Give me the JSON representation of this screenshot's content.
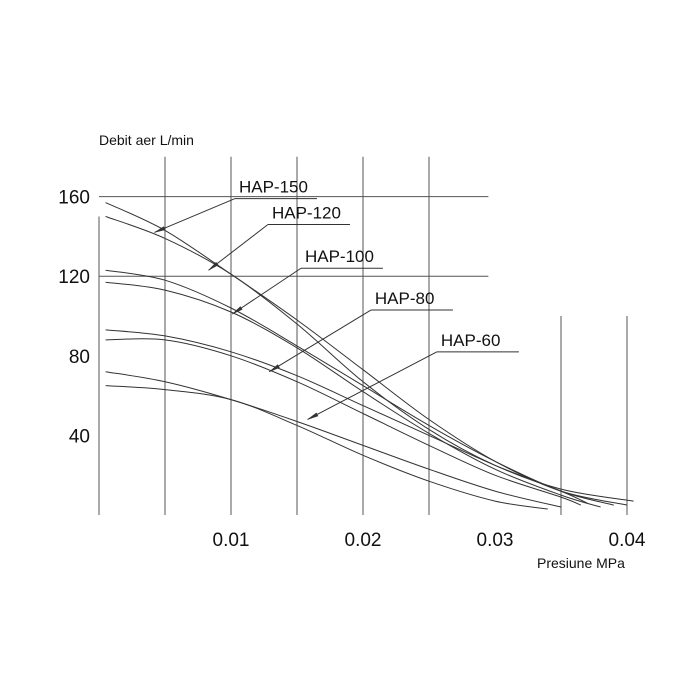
{
  "chart_data": {
    "type": "line",
    "title": "",
    "ylabel": "Debit aer L/min",
    "xlabel": "Presiune MPa",
    "xlim": [
      0,
      0.04
    ],
    "ylim": [
      0,
      160
    ],
    "x_ticks": [
      {
        "value": 0.01,
        "label": "0.01"
      },
      {
        "value": 0.02,
        "label": "0.02"
      },
      {
        "value": 0.03,
        "label": "0.03"
      },
      {
        "value": 0.04,
        "label": "0.04"
      }
    ],
    "y_ticks": [
      {
        "value": 40,
        "label": "40"
      },
      {
        "value": 80,
        "label": "80"
      },
      {
        "value": 120,
        "label": "120"
      },
      {
        "value": 160,
        "label": "160"
      }
    ],
    "grid": true,
    "line_color": "#333333",
    "series": [
      {
        "name": "HAP-150",
        "x": [
          0.0005,
          0.005,
          0.01,
          0.015,
          0.02,
          0.025,
          0.03,
          0.035,
          0.04
        ],
        "y": [
          157,
          143,
          121,
          98,
          73,
          48,
          27,
          12,
          5
        ]
      },
      {
        "name": "HAP-150",
        "x": [
          0.0005,
          0.005,
          0.01,
          0.015,
          0.02,
          0.025,
          0.03,
          0.035,
          0.0405
        ],
        "y": [
          150,
          139,
          121,
          96,
          67,
          43,
          25,
          13,
          7
        ]
      },
      {
        "name": "HAP-120",
        "x": [
          0.0005,
          0.005,
          0.01,
          0.015,
          0.02,
          0.025,
          0.03,
          0.035,
          0.039
        ],
        "y": [
          123,
          118,
          104,
          85,
          65,
          45,
          27,
          12,
          5
        ]
      },
      {
        "name": "HAP-120",
        "x": [
          0.0005,
          0.005,
          0.01,
          0.015,
          0.02,
          0.025,
          0.03,
          0.035,
          0.038
        ],
        "y": [
          117,
          113,
          102,
          84,
          62,
          41,
          23,
          10,
          4
        ]
      },
      {
        "name": "HAP-100",
        "x": [
          0.0005,
          0.005,
          0.01,
          0.015,
          0.02,
          0.025,
          0.03,
          0.035,
          0.037
        ],
        "y": [
          93,
          90,
          82,
          70,
          55,
          40,
          25,
          12,
          6
        ]
      },
      {
        "name": "HAP-100",
        "x": [
          0.0005,
          0.005,
          0.01,
          0.015,
          0.02,
          0.025,
          0.03,
          0.035,
          0.0365
        ],
        "y": [
          88,
          88,
          80,
          67,
          51,
          35,
          20,
          9,
          5
        ]
      },
      {
        "name": "HAP-80",
        "x": [
          0.0005,
          0.005,
          0.01,
          0.015,
          0.02,
          0.025,
          0.03,
          0.035
        ],
        "y": [
          72,
          67,
          58,
          47,
          35,
          23,
          12,
          4
        ]
      },
      {
        "name": "HAP-60",
        "x": [
          0.0005,
          0.005,
          0.01,
          0.015,
          0.02,
          0.025,
          0.03,
          0.034
        ],
        "y": [
          65,
          63,
          58,
          45,
          30,
          17,
          7,
          3
        ]
      }
    ],
    "annotations": [
      {
        "text": "HAP-150",
        "label_x": 0.0103,
        "label_y": 159,
        "end_x": 0.0042,
        "end_y": 142
      },
      {
        "text": "HAP-120",
        "label_x": 0.0128,
        "label_y": 146,
        "end_x": 0.0083,
        "end_y": 123
      },
      {
        "text": "HAP-100",
        "label_x": 0.0153,
        "label_y": 124,
        "end_x": 0.0101,
        "end_y": 101
      },
      {
        "text": "HAP-80",
        "label_x": 0.0206,
        "label_y": 103,
        "end_x": 0.0129,
        "end_y": 72
      },
      {
        "text": "HAP-60",
        "label_x": 0.0256,
        "label_y": 82,
        "end_x": 0.0158,
        "end_y": 48
      }
    ]
  }
}
